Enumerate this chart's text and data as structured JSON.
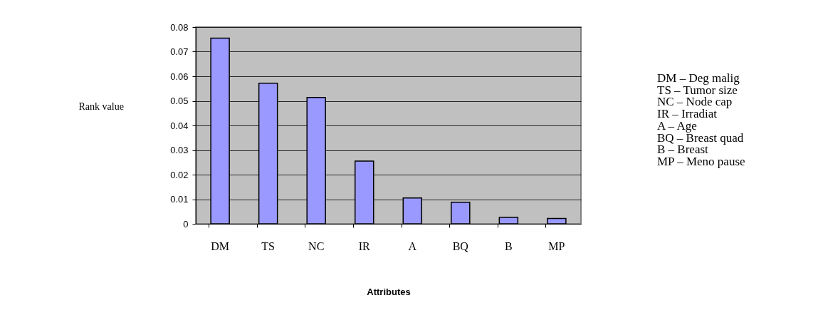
{
  "chart_data": {
    "type": "bar",
    "categories": [
      "DM",
      "TS",
      "NC",
      "IR",
      "A",
      "BQ",
      "B",
      "MP"
    ],
    "values": [
      0.0755,
      0.0572,
      0.0514,
      0.0255,
      0.0105,
      0.0088,
      0.0026,
      0.0022
    ],
    "color": "#9999ff",
    "ylim": [
      0,
      0.08
    ],
    "yticks": [
      0,
      0.01,
      0.02,
      0.03,
      0.04,
      0.05,
      0.06,
      0.07,
      0.08
    ],
    "ylabel": "Rank value",
    "xlabel": "Attributes",
    "grid": "y",
    "annotations": [
      "DM – Deg malig",
      "TS  – Tumor size",
      "NC – Node cap",
      "IR   – Irradiat",
      "A    – Age",
      "BQ  – Breast quad",
      "B     – Breast",
      "MP  – Meno pause"
    ]
  }
}
